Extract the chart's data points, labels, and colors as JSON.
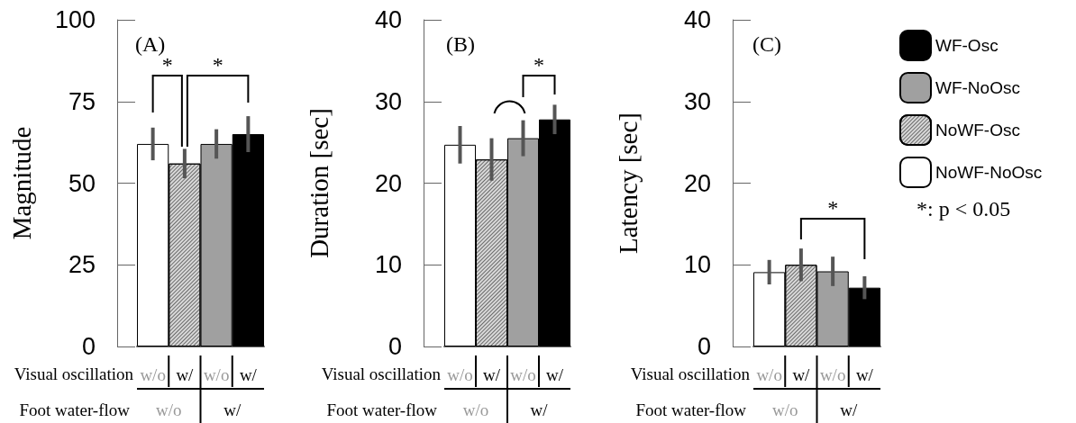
{
  "chart_data": [
    {
      "type": "bar",
      "title": "(A)",
      "ylabel": "Magnitude",
      "categories": [
        "w/o",
        "w/",
        "w/o",
        "w/"
      ],
      "stacked": true,
      "ylim": [
        0,
        100
      ],
      "yticks": [
        0,
        25,
        50,
        75,
        100
      ],
      "legend": false,
      "series": [
        {
          "color": "#ffffff",
          "values": [
            62,
            null,
            null,
            null
          ],
          "errors": [
            5,
            null,
            null,
            null
          ]
        },
        {
          "color": "#d9d9d9",
          "values": [
            null,
            56,
            null,
            null
          ],
          "errors": [
            null,
            4.5,
            null,
            null
          ]
        },
        {
          "color": "#a0a0a0",
          "values": [
            null,
            null,
            62,
            null
          ],
          "errors": [
            null,
            null,
            4.5,
            null
          ]
        },
        {
          "color": "#000000",
          "values": [
            null,
            null,
            null,
            65
          ],
          "errors": [
            null,
            null,
            null,
            5.5
          ]
        }
      ],
      "annotations": [
        "Visual oscillation",
        "Foot water-flow",
        "w/o",
        "w/",
        "*",
        "*"
      ]
    },
    {
      "type": "bar",
      "title": "(B)",
      "ylabel": "Duration [sec]",
      "categories": [
        "w/o",
        "w/",
        "w/o",
        "w/"
      ],
      "stacked": true,
      "ylim": [
        0,
        40
      ],
      "yticks": [
        0,
        10,
        20,
        30,
        40
      ],
      "legend": false,
      "series": [
        {
          "color": "#ffffff",
          "values": [
            24.7,
            null,
            null,
            null
          ],
          "errors": [
            2.3,
            null,
            null,
            null
          ]
        },
        {
          "color": "#d9d9d9",
          "values": [
            null,
            22.9,
            null,
            null
          ],
          "errors": [
            null,
            2.6,
            null,
            null
          ]
        },
        {
          "color": "#a0a0a0",
          "values": [
            null,
            null,
            25.5,
            null
          ],
          "errors": [
            null,
            null,
            2.2,
            null
          ]
        },
        {
          "color": "#000000",
          "values": [
            null,
            null,
            null,
            27.8
          ],
          "errors": [
            null,
            null,
            null,
            1.8
          ]
        }
      ],
      "annotations": [
        "Visual oscillation",
        "Foot water-flow",
        "w/o",
        "w/",
        "*"
      ]
    },
    {
      "type": "bar",
      "title": "(C)",
      "ylabel": "Latency [sec]",
      "categories": [
        "w/o",
        "w/",
        "w/o",
        "w/"
      ],
      "stacked": true,
      "ylim": [
        0,
        40
      ],
      "yticks": [
        0,
        10,
        20,
        30,
        40
      ],
      "legend": "right",
      "series": [
        {
          "name": "NoWF-NoOsc",
          "color": "#ffffff",
          "values": [
            9.1,
            null,
            null,
            null
          ],
          "errors": [
            1.5,
            null,
            null,
            null
          ]
        },
        {
          "name": "NoWF-Osc",
          "color": "#d9d9d9",
          "values": [
            null,
            10,
            null,
            null
          ],
          "errors": [
            null,
            2,
            null,
            null
          ]
        },
        {
          "name": "WF-NoOsc",
          "color": "#a0a0a0",
          "values": [
            null,
            null,
            9.2,
            null
          ],
          "errors": [
            null,
            null,
            1.8,
            null
          ]
        },
        {
          "name": "WF-Osc",
          "color": "#000000",
          "values": [
            null,
            null,
            null,
            7.2
          ],
          "errors": [
            null,
            null,
            null,
            1.4
          ]
        }
      ],
      "annotations": [
        "Visual oscillation",
        "Foot water-flow",
        "w/o",
        "w/",
        "*",
        "*: p < 0.05"
      ]
    }
  ]
}
